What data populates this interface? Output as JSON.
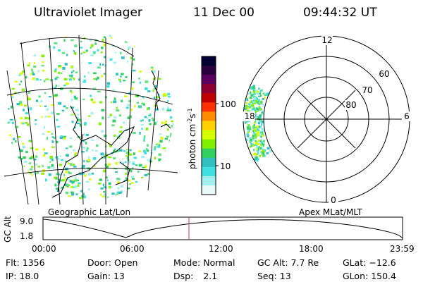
{
  "header": {
    "instrument": "Ultraviolet Imager",
    "date": "11 Dec 00",
    "time": "09:44:32 UT"
  },
  "colorbar": {
    "label": "photon cm",
    "label_exp1": "-2",
    "label_mid": "s",
    "label_exp2": "-1",
    "tick_high": "100",
    "tick_low": "10",
    "scale": "log",
    "colors": [
      "#000033",
      "#2b0040",
      "#5a0060",
      "#8b0030",
      "#c00000",
      "#ff3000",
      "#ff8c00",
      "#ffd000",
      "#d8ff00",
      "#80f000",
      "#30d060",
      "#30c0c0",
      "#40e0e0",
      "#a0f0f0",
      "#e8f8f8"
    ]
  },
  "geo_map": {
    "label": "Geographic Lat/Lon"
  },
  "polar_plot": {
    "label": "Apex MLat/MLT",
    "mlt_labels": {
      "top": "12",
      "left": "18",
      "right": "6",
      "bottom": "0"
    },
    "lat_labels": [
      "60",
      "70",
      "80"
    ]
  },
  "altitude_plot": {
    "ylabel": "GC Alt",
    "yticks": [
      "9.0",
      "1.8"
    ],
    "xticks": [
      "00:00",
      "06:00",
      "12:00",
      "18:00",
      "23:59"
    ],
    "current_time_hours": 9.742
  },
  "info": {
    "flt_label": "Flt:",
    "flt_value": "1356",
    "ip_label": "IP:",
    "ip_value": "18.0",
    "door_label": "Door:",
    "door_value": "Open",
    "gain_label": "Gain:",
    "gain_value": "13",
    "mode_label": "Mode:",
    "mode_value": "Normal",
    "dsp_label": "Dsp:",
    "dsp_value": "2.1",
    "gcalt_label": "GC Alt:",
    "gcalt_value": "7.7 Re",
    "seq_label": "Seq:",
    "seq_value": "13",
    "glat_label": "GLat:",
    "glat_value": "−12.6",
    "glon_label": "GLon:",
    "glon_value": "150.4"
  }
}
